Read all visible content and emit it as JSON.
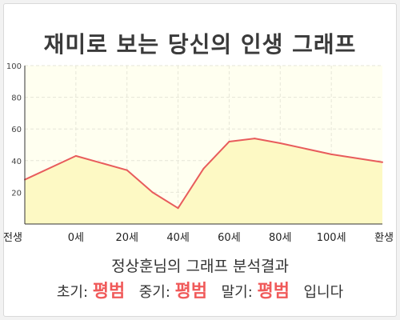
{
  "page_title": "재미로 보는 당신의 인생 그래프",
  "caption": "정상훈님의 그래프 분석결과",
  "result": {
    "early_label": "초기:",
    "early_value": "평범",
    "mid_label": "중기:",
    "mid_value": "평범",
    "late_label": "말기:",
    "late_value": "평범",
    "suffix": "입니다"
  },
  "colors": {
    "line": "#e85c5c",
    "fill": "#fdf9c4",
    "plot_bg": "#fffff0",
    "grid": "#e6e6d8",
    "highlight": "#f05a5a"
  },
  "chart_data": {
    "type": "area",
    "title": "재미로 보는 당신의 인생 그래프",
    "x_tick_labels": [
      "전생",
      "0세",
      "20세",
      "40세",
      "60세",
      "80세",
      "100세",
      "환생"
    ],
    "x": [
      0,
      1,
      2,
      2.5,
      3,
      3.5,
      4,
      4.5,
      5,
      6,
      7
    ],
    "y": [
      28,
      43,
      34,
      20,
      10,
      35,
      52,
      54,
      51,
      44,
      39
    ],
    "ylim": [
      0,
      100
    ],
    "y_ticks": [
      20,
      40,
      60,
      80,
      100
    ],
    "grid": true,
    "legend": "none"
  }
}
